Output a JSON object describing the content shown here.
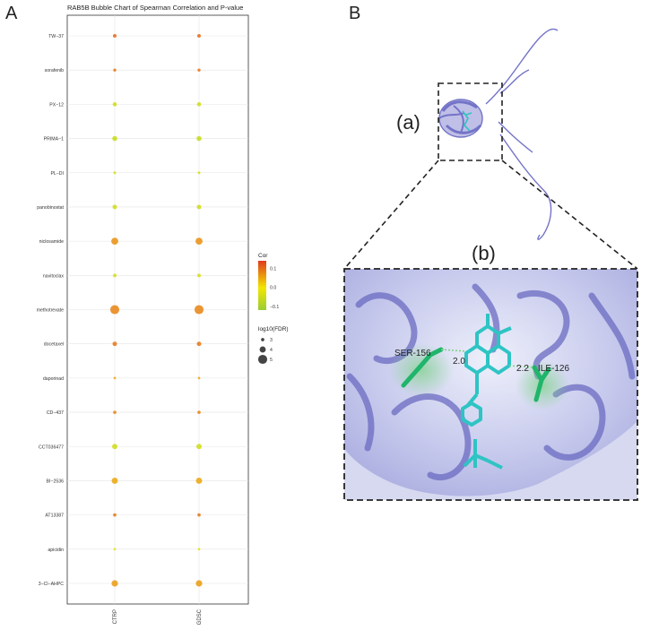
{
  "panel_a_label": "A",
  "panel_b_label": "B",
  "chart_data": {
    "type": "scatter",
    "title": "RAB5B Bubble Chart of Spearman Correlation and P-value",
    "x_categories": [
      "CTRP",
      "GDSC"
    ],
    "y_categories": [
      "TW−37",
      "sorafenib",
      "PX−12",
      "PRIMA−1",
      "PL−DI",
      "panobinostat",
      "niclosamide",
      "navitoclax",
      "methotrexate",
      "docetaxel",
      "daporinad",
      "CD−437",
      "CCT036477",
      "BI−2536",
      "AT13387",
      "apicidin",
      "3−Cl−AHPC"
    ],
    "points": [
      {
        "drug": "TW−37",
        "dataset": "CTRP",
        "cor": 0.1,
        "log10_fdr": 3.1
      },
      {
        "drug": "TW−37",
        "dataset": "GDSC",
        "cor": 0.1,
        "log10_fdr": 3.1
      },
      {
        "drug": "sorafenib",
        "dataset": "CTRP",
        "cor": 0.09,
        "log10_fdr": 2.9
      },
      {
        "drug": "sorafenib",
        "dataset": "GDSC",
        "cor": 0.09,
        "log10_fdr": 2.9
      },
      {
        "drug": "PX−12",
        "dataset": "CTRP",
        "cor": -0.05,
        "log10_fdr": 3.3
      },
      {
        "drug": "PX−12",
        "dataset": "GDSC",
        "cor": -0.05,
        "log10_fdr": 3.3
      },
      {
        "drug": "PRIMA−1",
        "dataset": "CTRP",
        "cor": -0.06,
        "log10_fdr": 3.6
      },
      {
        "drug": "PRIMA−1",
        "dataset": "GDSC",
        "cor": -0.06,
        "log10_fdr": 3.6
      },
      {
        "drug": "PL−DI",
        "dataset": "CTRP",
        "cor": -0.04,
        "log10_fdr": 2.8
      },
      {
        "drug": "PL−DI",
        "dataset": "GDSC",
        "cor": -0.04,
        "log10_fdr": 2.8
      },
      {
        "drug": "panobinostat",
        "dataset": "CTRP",
        "cor": -0.05,
        "log10_fdr": 3.4
      },
      {
        "drug": "panobinostat",
        "dataset": "GDSC",
        "cor": -0.05,
        "log10_fdr": 3.4
      },
      {
        "drug": "niclosamide",
        "dataset": "CTRP",
        "cor": 0.07,
        "log10_fdr": 4.3
      },
      {
        "drug": "niclosamide",
        "dataset": "GDSC",
        "cor": 0.07,
        "log10_fdr": 4.3
      },
      {
        "drug": "navitoclax",
        "dataset": "CTRP",
        "cor": -0.04,
        "log10_fdr": 3.1
      },
      {
        "drug": "navitoclax",
        "dataset": "GDSC",
        "cor": -0.04,
        "log10_fdr": 3.1
      },
      {
        "drug": "methotrexate",
        "dataset": "CTRP",
        "cor": 0.08,
        "log10_fdr": 5.0
      },
      {
        "drug": "methotrexate",
        "dataset": "GDSC",
        "cor": 0.08,
        "log10_fdr": 5.0
      },
      {
        "drug": "docetaxel",
        "dataset": "CTRP",
        "cor": 0.09,
        "log10_fdr": 3.4
      },
      {
        "drug": "docetaxel",
        "dataset": "GDSC",
        "cor": 0.09,
        "log10_fdr": 3.4
      },
      {
        "drug": "daporinad",
        "dataset": "CTRP",
        "cor": 0.05,
        "log10_fdr": 2.7
      },
      {
        "drug": "daporinad",
        "dataset": "GDSC",
        "cor": 0.05,
        "log10_fdr": 2.7
      },
      {
        "drug": "CD−437",
        "dataset": "CTRP",
        "cor": 0.08,
        "log10_fdr": 3.0
      },
      {
        "drug": "CD−437",
        "dataset": "GDSC",
        "cor": 0.08,
        "log10_fdr": 3.0
      },
      {
        "drug": "CCT036477",
        "dataset": "CTRP",
        "cor": -0.05,
        "log10_fdr": 3.7
      },
      {
        "drug": "CCT036477",
        "dataset": "GDSC",
        "cor": -0.05,
        "log10_fdr": 3.7
      },
      {
        "drug": "BI−2536",
        "dataset": "CTRP",
        "cor": 0.05,
        "log10_fdr": 4.0
      },
      {
        "drug": "BI−2536",
        "dataset": "GDSC",
        "cor": 0.05,
        "log10_fdr": 4.0
      },
      {
        "drug": "AT13387",
        "dataset": "CTRP",
        "cor": 0.09,
        "log10_fdr": 3.0
      },
      {
        "drug": "AT13387",
        "dataset": "GDSC",
        "cor": 0.09,
        "log10_fdr": 3.0
      },
      {
        "drug": "apicidin",
        "dataset": "CTRP",
        "cor": -0.03,
        "log10_fdr": 2.7
      },
      {
        "drug": "apicidin",
        "dataset": "GDSC",
        "cor": -0.03,
        "log10_fdr": 2.7
      },
      {
        "drug": "3−Cl−AHPC",
        "dataset": "CTRP",
        "cor": 0.06,
        "log10_fdr": 4.1
      },
      {
        "drug": "3−Cl−AHPC",
        "dataset": "GDSC",
        "cor": 0.06,
        "log10_fdr": 4.1
      }
    ],
    "color_legend": {
      "title": "Cor",
      "ticks": [
        "0.1",
        "0.0",
        "−0.1"
      ],
      "range": [
        -0.12,
        0.14
      ],
      "low_color": "#9acd32",
      "mid_color": "#f2e600",
      "high_color": "#e03a1e"
    },
    "size_legend": {
      "title": "log10(FDR)",
      "ticks": [
        "3",
        "4",
        "5"
      ],
      "values": [
        3,
        4,
        5
      ]
    },
    "grid": true
  },
  "panel_b": {
    "label_a": "(a)",
    "label_b": "(b)",
    "residue_1": "SER-156",
    "residue_2": "ILE-126",
    "distance_1": "2.0",
    "distance_2": "2.2",
    "protein_color": "#7373c8",
    "ligand_color": "#2ec4c4",
    "residue_color": "#1fb56a"
  }
}
